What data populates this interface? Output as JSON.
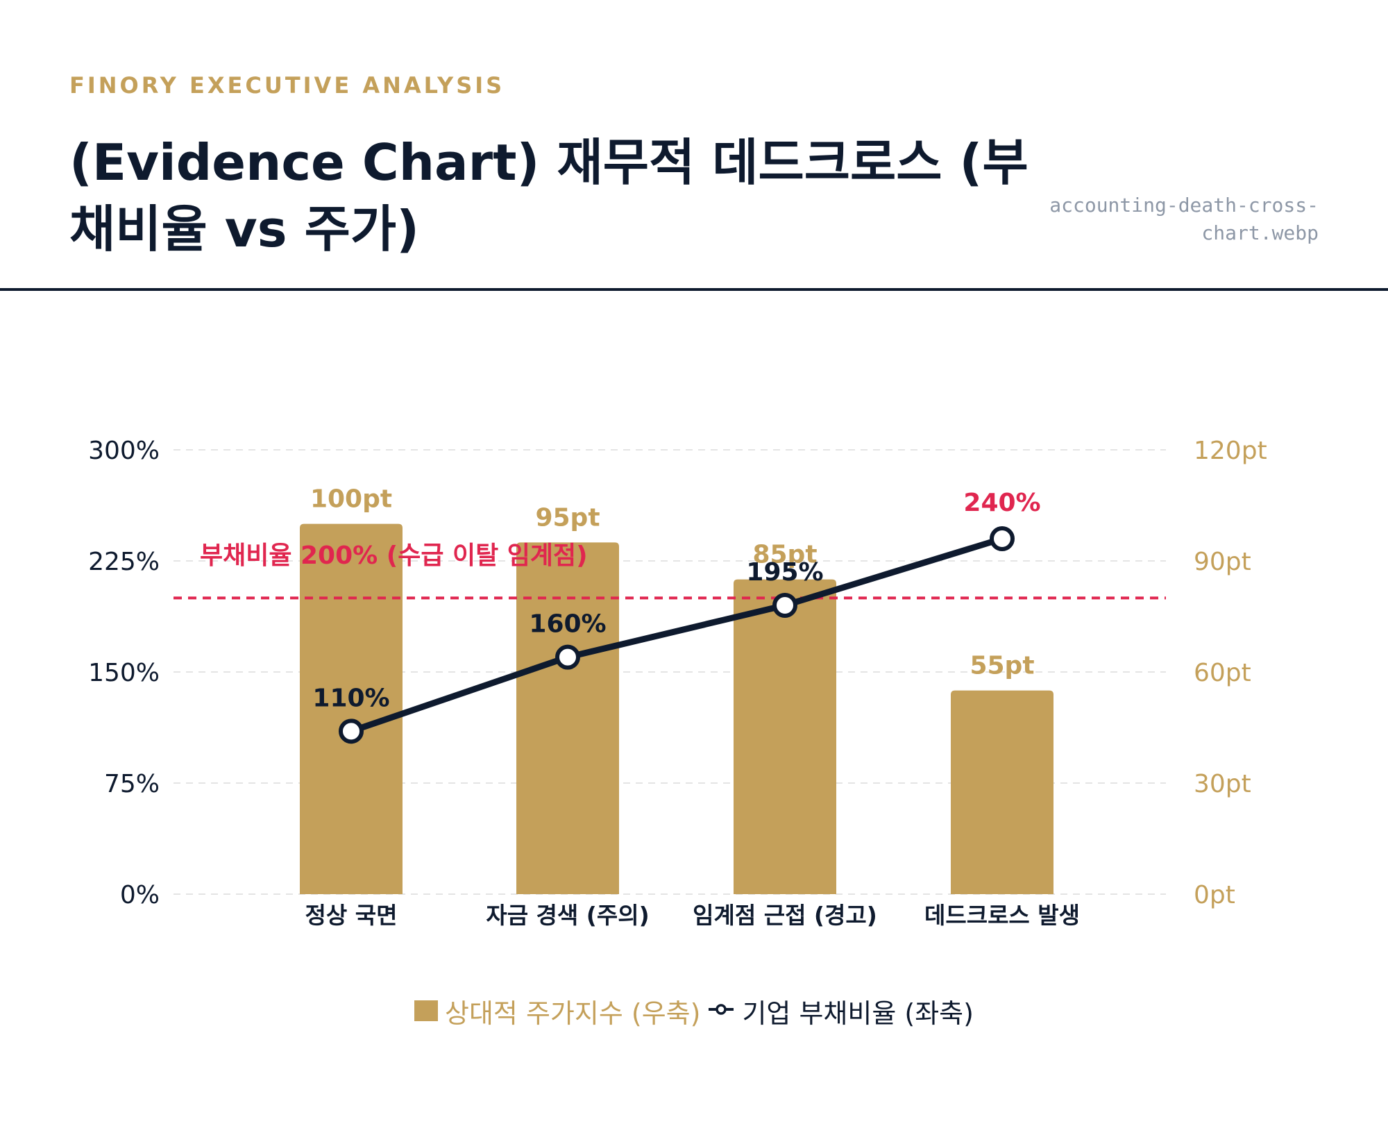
{
  "header": {
    "eyebrow": "FINORY EXECUTIVE ANALYSIS",
    "title": "(Evidence Chart) 재무적 데드크로스 (부채비율 vs 주가)",
    "filename": "accounting-death-cross-chart.webp"
  },
  "colors": {
    "bar": "#c4a05a",
    "line": "#0e1a2e",
    "threshold": "#e0264f",
    "grid": "#e4e4e4",
    "text_dark": "#0e1a2e",
    "axis_right": "#c4a05a"
  },
  "chart_data": {
    "type": "bar",
    "categories": [
      "정상 국면",
      "자금 경색 (주의)",
      "임계점 근접 (경고)",
      "데드크로스 발생"
    ],
    "series": [
      {
        "name": "상대적 주가지수 (우축)",
        "type": "bar",
        "axis": "right",
        "values": [
          100,
          95,
          85,
          55
        ],
        "labels": [
          "100pt",
          "95pt",
          "85pt",
          "55pt"
        ]
      },
      {
        "name": "기업 부채비율 (좌축)",
        "type": "line",
        "axis": "left",
        "values": [
          110,
          160,
          195,
          240
        ],
        "labels": [
          "110%",
          "160%",
          "195%",
          "240%"
        ]
      }
    ],
    "y_left": {
      "ylim": [
        0,
        300
      ],
      "ticks": [
        0,
        75,
        150,
        225,
        300
      ],
      "tick_labels": [
        "0%",
        "75%",
        "150%",
        "225%",
        "300%"
      ]
    },
    "y_right": {
      "ylim": [
        0,
        120
      ],
      "ticks": [
        0,
        30,
        60,
        90,
        120
      ],
      "tick_labels": [
        "0pt",
        "30pt",
        "60pt",
        "90pt",
        "120pt"
      ]
    },
    "threshold": {
      "value": 200,
      "axis": "left",
      "label": "부채비율 200% (수급 이탈 임계점)"
    },
    "grid": true,
    "legend_position": "bottom"
  }
}
